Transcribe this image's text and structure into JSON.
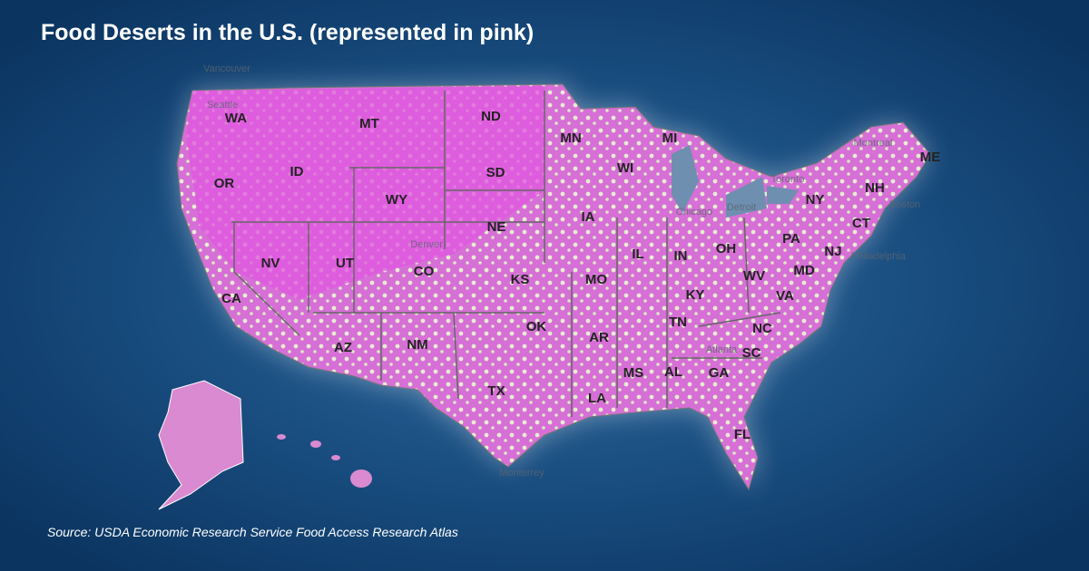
{
  "title": "Food Deserts in the U.S. (represented in pink)",
  "source": "Source: USDA Economic Research Service Food Access Research Atlas",
  "states": [
    "WA",
    "OR",
    "CA",
    "NV",
    "ID",
    "MT",
    "WY",
    "UT",
    "CO",
    "AZ",
    "NM",
    "ND",
    "SD",
    "NE",
    "KS",
    "OK",
    "TX",
    "MN",
    "IA",
    "MO",
    "AR",
    "LA",
    "WI",
    "IL",
    "MS",
    "MI",
    "IN",
    "KY",
    "TN",
    "AL",
    "GA",
    "FL",
    "OH",
    "WV",
    "VA",
    "NC",
    "SC",
    "PA",
    "NY",
    "ME",
    "NH",
    "CT",
    "NJ",
    "MD"
  ],
  "cities": [
    "Vancouver",
    "Seattle",
    "Denver",
    "Chicago",
    "Detroit",
    "Toronto",
    "Montreal",
    "Boston",
    "Philadelphia",
    "Atlanta",
    "Monterrey"
  ]
}
